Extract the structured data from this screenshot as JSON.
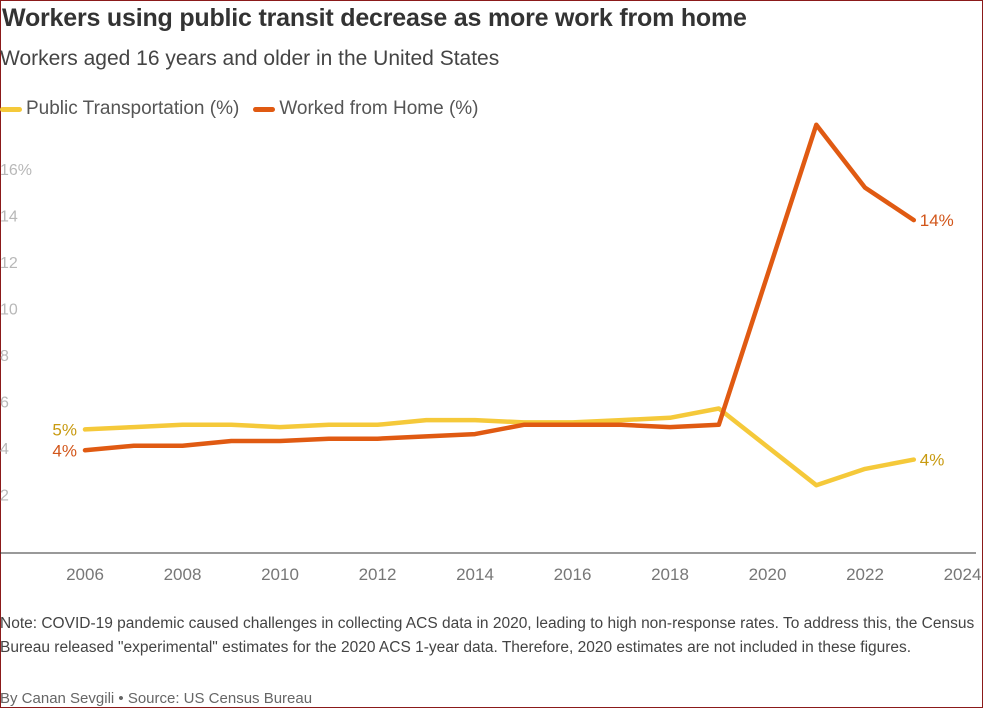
{
  "title": "Workers using public transit decrease as more work from home",
  "subtitle": "Workers aged 16 years and older in the United States",
  "legend": [
    {
      "label": "Public Transportation (%)",
      "color": "#f5c93a"
    },
    {
      "label": "Worked from Home (%)",
      "color": "#e05a12"
    }
  ],
  "note": "Note: COVID-19 pandemic caused challenges in collecting ACS data in 2020, leading to high non-response rates. To address this, the Census Bureau released \"experimental\" estimates for the 2020 ACS 1-year data. Therefore, 2020 estimates are not included in these figures.",
  "byline": "By Canan Sevgili • Source: US Census Bureau",
  "chart_data": {
    "type": "line",
    "title": "Workers using public transit decrease as more work from home",
    "subtitle": "Workers aged 16 years and older in the United States",
    "x_ticks": [
      2006,
      2008,
      2010,
      2012,
      2014,
      2016,
      2018,
      2020,
      2022,
      2024
    ],
    "y_tick_labels": [
      "2",
      "4",
      "6",
      "8",
      "10",
      "12",
      "14",
      "16%"
    ],
    "y_ticks": [
      2,
      4,
      6,
      8,
      10,
      12,
      14,
      16
    ],
    "xlim": [
      2005,
      2024
    ],
    "ylim": [
      0,
      18
    ],
    "grid": false,
    "legend_position": "top-left",
    "series": [
      {
        "name": "Public Transportation (%)",
        "color": "#f5c93a",
        "x": [
          2006,
          2007,
          2008,
          2009,
          2010,
          2011,
          2012,
          2013,
          2014,
          2015,
          2016,
          2017,
          2018,
          2019,
          2021,
          2022,
          2023
        ],
        "values": [
          4.8,
          4.9,
          5.0,
          5.0,
          4.9,
          5.0,
          5.0,
          5.2,
          5.2,
          5.1,
          5.1,
          5.2,
          5.3,
          5.7,
          2.4,
          3.1,
          3.5
        ],
        "start_label": "5%",
        "end_label": "4%"
      },
      {
        "name": "Worked from Home (%)",
        "color": "#e05a12",
        "x": [
          2006,
          2007,
          2008,
          2009,
          2010,
          2011,
          2012,
          2013,
          2014,
          2015,
          2016,
          2017,
          2018,
          2019,
          2021,
          2022,
          2023
        ],
        "values": [
          3.9,
          4.1,
          4.1,
          4.3,
          4.3,
          4.4,
          4.4,
          4.5,
          4.6,
          5.0,
          5.0,
          5.0,
          4.9,
          5.0,
          17.9,
          15.2,
          13.8
        ],
        "start_label": "4%",
        "end_label": "14%"
      }
    ]
  }
}
